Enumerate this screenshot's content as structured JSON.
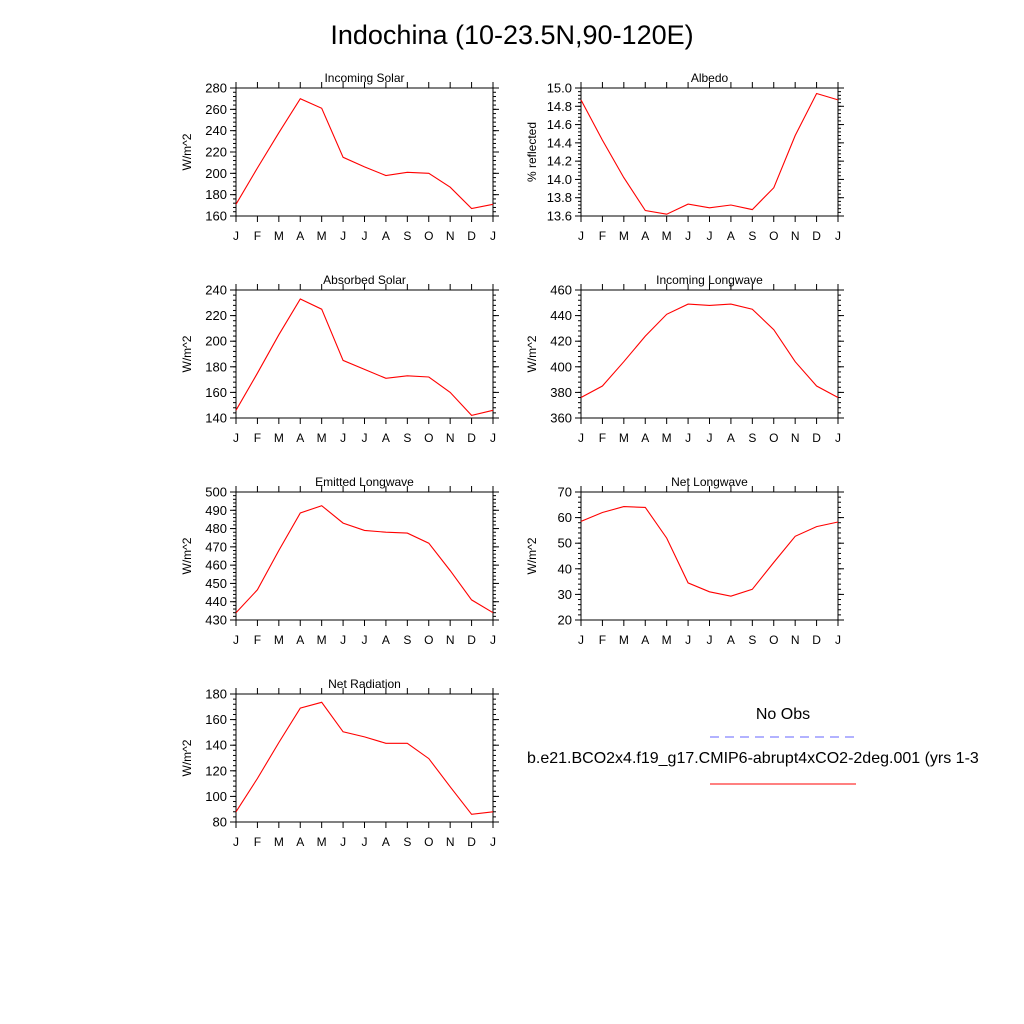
{
  "title": "Indochina (10-23.5N,90-120E)",
  "legend": {
    "entries": [
      {
        "label": "No Obs",
        "color": "#6666ff",
        "style": "dashed"
      },
      {
        "label": "b.e21.BCO2x4.f19_g17.CMIP6-abrupt4xCO2-2deg.001 (yrs 1-3",
        "color": "#ff0000",
        "style": "solid"
      }
    ]
  },
  "chart_data": [
    {
      "type": "line",
      "title": "Incoming Solar",
      "ylabel": "W/m^2",
      "categories": [
        "J",
        "F",
        "M",
        "A",
        "M",
        "J",
        "J",
        "A",
        "S",
        "O",
        "N",
        "D",
        "J"
      ],
      "ylim": [
        160,
        280
      ],
      "yticks": [
        160,
        180,
        200,
        220,
        240,
        260,
        280
      ],
      "yticklabels": [
        "160",
        "180",
        "200",
        "220",
        "240",
        "260",
        "280"
      ],
      "series": [
        {
          "color": "#ff0000",
          "values": [
            171,
            205,
            238,
            270,
            261,
            215,
            206,
            198,
            201,
            200,
            187,
            167,
            171
          ]
        }
      ]
    },
    {
      "type": "line",
      "title": "Albedo",
      "ylabel": "% reflected",
      "categories": [
        "J",
        "F",
        "M",
        "A",
        "M",
        "J",
        "J",
        "A",
        "S",
        "O",
        "N",
        "D",
        "J"
      ],
      "ylim": [
        13.6,
        15.0
      ],
      "yticks": [
        13.6,
        13.8,
        14.0,
        14.2,
        14.4,
        14.6,
        14.8,
        15.0
      ],
      "yticklabels": [
        "13.6",
        "13.8",
        "14.0",
        "14.2",
        "14.4",
        "14.6",
        "14.8",
        "15.0"
      ],
      "series": [
        {
          "color": "#ff0000",
          "values": [
            14.87,
            14.43,
            14.02,
            13.66,
            13.62,
            13.73,
            13.69,
            13.72,
            13.67,
            13.91,
            14.48,
            14.94,
            14.87
          ]
        }
      ]
    },
    {
      "type": "line",
      "title": "Absorbed Solar",
      "ylabel": "W/m^2",
      "categories": [
        "J",
        "F",
        "M",
        "A",
        "M",
        "J",
        "J",
        "A",
        "S",
        "O",
        "N",
        "D",
        "J"
      ],
      "ylim": [
        140,
        240
      ],
      "yticks": [
        140,
        160,
        180,
        200,
        220,
        240
      ],
      "yticklabels": [
        "140",
        "160",
        "180",
        "200",
        "220",
        "240"
      ],
      "series": [
        {
          "color": "#ff0000",
          "values": [
            146,
            175,
            205,
            233,
            225,
            185,
            178,
            171,
            173,
            172,
            160,
            142,
            146
          ]
        }
      ]
    },
    {
      "type": "line",
      "title": "Incoming Longwave",
      "ylabel": "W/m^2",
      "categories": [
        "J",
        "F",
        "M",
        "A",
        "M",
        "J",
        "J",
        "A",
        "S",
        "O",
        "N",
        "D",
        "J"
      ],
      "ylim": [
        360,
        460
      ],
      "yticks": [
        360,
        380,
        400,
        420,
        440,
        460
      ],
      "yticklabels": [
        "360",
        "380",
        "400",
        "420",
        "440",
        "460"
      ],
      "series": [
        {
          "color": "#ff0000",
          "values": [
            376,
            385,
            404,
            424,
            441,
            449,
            448,
            449,
            445,
            429,
            404,
            385,
            376
          ]
        }
      ]
    },
    {
      "type": "line",
      "title": "Emitted Longwave",
      "ylabel": "W/m^2",
      "categories": [
        "J",
        "F",
        "M",
        "A",
        "M",
        "J",
        "J",
        "A",
        "S",
        "O",
        "N",
        "D",
        "J"
      ],
      "ylim": [
        430,
        500
      ],
      "yticks": [
        430,
        440,
        450,
        460,
        470,
        480,
        490,
        500
      ],
      "yticklabels": [
        "430",
        "440",
        "450",
        "460",
        "470",
        "480",
        "490",
        "500"
      ],
      "series": [
        {
          "color": "#ff0000",
          "values": [
            434,
            446.5,
            468,
            488.5,
            492.5,
            483,
            479,
            478,
            477.5,
            472,
            457,
            441,
            434
          ]
        }
      ]
    },
    {
      "type": "line",
      "title": "Net Longwave",
      "ylabel": "W/m^2",
      "categories": [
        "J",
        "F",
        "M",
        "A",
        "M",
        "J",
        "J",
        "A",
        "S",
        "O",
        "N",
        "D",
        "J"
      ],
      "ylim": [
        20,
        70
      ],
      "yticks": [
        20,
        30,
        40,
        50,
        60,
        70
      ],
      "yticklabels": [
        "20",
        "30",
        "40",
        "50",
        "60",
        "70"
      ],
      "series": [
        {
          "color": "#ff0000",
          "values": [
            58.5,
            62,
            64.3,
            64,
            52,
            34.5,
            31,
            29.3,
            32,
            42.5,
            52.7,
            56.5,
            58.3
          ]
        }
      ]
    },
    {
      "type": "line",
      "title": "Net Radiation",
      "ylabel": "W/m^2",
      "categories": [
        "J",
        "F",
        "M",
        "A",
        "M",
        "J",
        "J",
        "A",
        "S",
        "O",
        "N",
        "D",
        "J"
      ],
      "ylim": [
        80,
        180
      ],
      "yticks": [
        80,
        100,
        120,
        140,
        160,
        180
      ],
      "yticklabels": [
        "80",
        "100",
        "120",
        "140",
        "160",
        "180"
      ],
      "series": [
        {
          "color": "#ff0000",
          "values": [
            88,
            114,
            142,
            169,
            173.5,
            150.5,
            146.5,
            141.5,
            141.5,
            129.5,
            107.5,
            86,
            88
          ]
        }
      ]
    }
  ]
}
